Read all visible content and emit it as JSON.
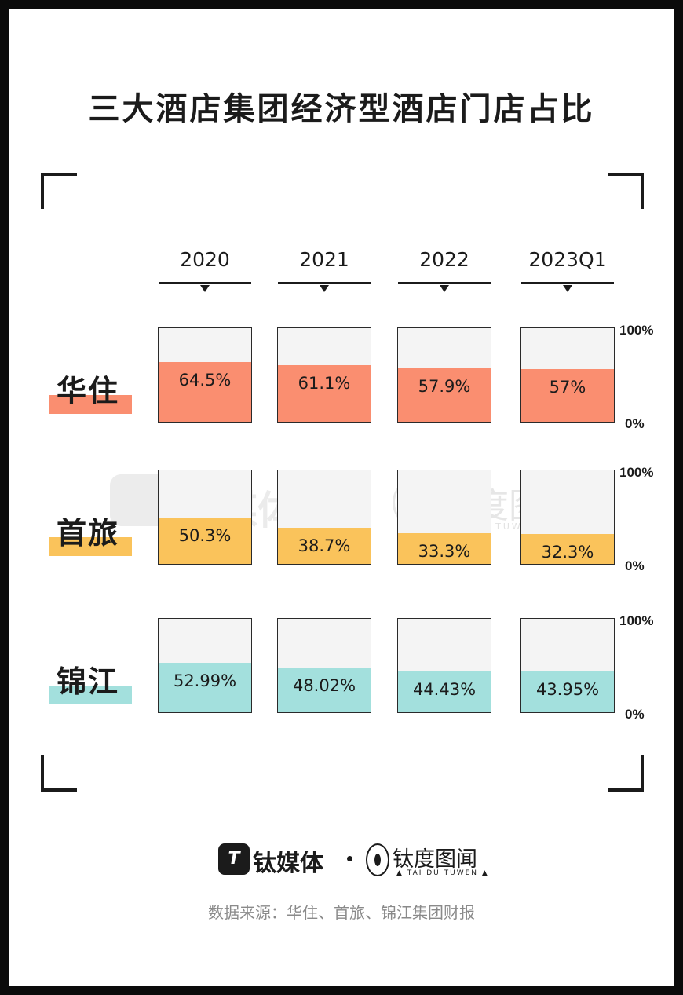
{
  "chart_data": {
    "type": "bar",
    "title": "三大酒店集团经济型酒店门店占比",
    "categories": [
      "2020",
      "2021",
      "2022",
      "2023Q1"
    ],
    "series": [
      {
        "name": "华住",
        "values": [
          64.5,
          61.1,
          57.9,
          57
        ],
        "labels": [
          "64.5%",
          "61.1%",
          "57.9%",
          "57%"
        ],
        "color": "#fa8e70"
      },
      {
        "name": "首旅",
        "values": [
          50.3,
          38.7,
          33.3,
          32.3
        ],
        "labels": [
          "50.3%",
          "38.7%",
          "33.3%",
          "32.3%"
        ],
        "color": "#fac35b"
      },
      {
        "name": "锦江",
        "values": [
          52.99,
          48.02,
          44.43,
          43.95
        ],
        "labels": [
          "52.99%",
          "48.02%",
          "44.43%",
          "43.95%"
        ],
        "color": "#a3e0dd"
      }
    ],
    "ylim": [
      0,
      100
    ],
    "ytick_labels": [
      "100%",
      "0%"
    ],
    "empty_color": "#f4f4f4"
  },
  "watermark": {
    "brand1": "钛媒体",
    "brand2": "钛度图闻",
    "brand2_sub": "TAI DU TUWEN"
  },
  "footer": {
    "brand1_mark": "T",
    "brand1": "钛媒体",
    "brand2": "钛度图闻",
    "brand2_sub": "▲ TAI DU TUWEN ▲",
    "source": "数据来源：华住、首旅、锦江集团财报"
  }
}
